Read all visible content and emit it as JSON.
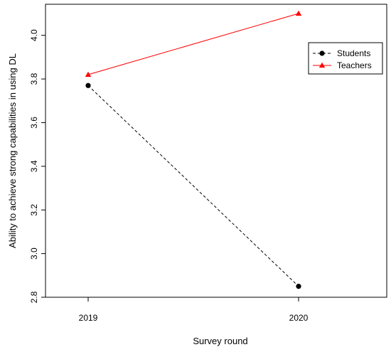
{
  "chart_data": {
    "type": "line",
    "categories": [
      "2019",
      "2020"
    ],
    "xlabel": "Survey round",
    "ylabel": "Ability to achieve strong capabilities in using DL",
    "ylim": [
      2.8,
      4.1
    ],
    "yticks": [
      "2.8",
      "3.0",
      "3.2",
      "3.4",
      "3.6",
      "3.8",
      "4.0"
    ],
    "grid": false,
    "legend_position": "top-right",
    "series": [
      {
        "name": "Students",
        "values": [
          3.77,
          2.85
        ],
        "color": "#000000",
        "line_style": "dashed",
        "marker": "circle"
      },
      {
        "name": "Teachers",
        "values": [
          3.82,
          4.1
        ],
        "color": "#ff0000",
        "line_style": "solid",
        "marker": "triangle"
      }
    ]
  }
}
